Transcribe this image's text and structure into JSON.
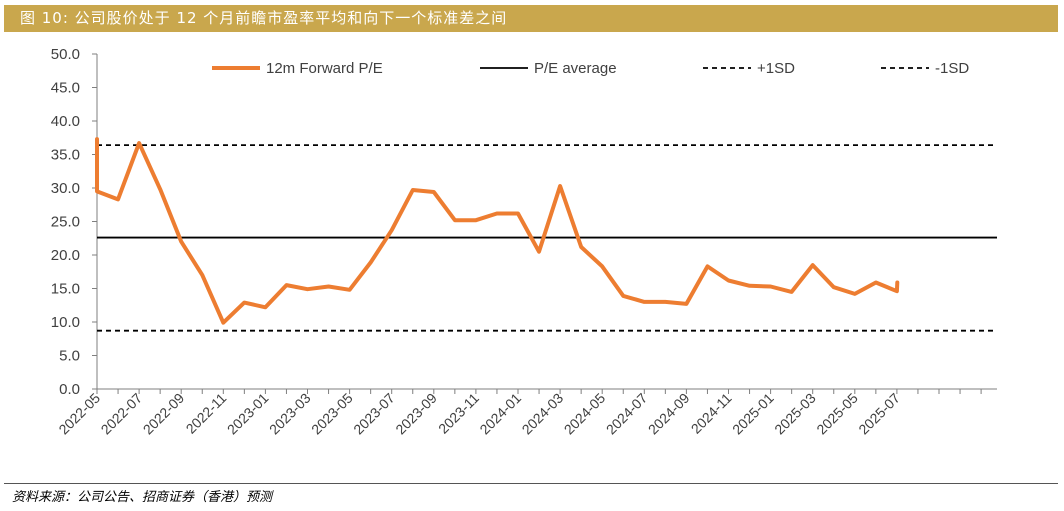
{
  "title": "图 10:  公司股价处于 12 个月前瞻市盈率平均和向下一个标准差之间",
  "source": "资料来源：公司公告、招商证券（香港）预测",
  "colors": {
    "title_bg": "#c9a74d",
    "series": "#ed7d31",
    "reference": "#000000"
  },
  "chart_data": {
    "type": "line",
    "ylim": [
      0,
      50
    ],
    "yticks": [
      "0.0",
      "5.0",
      "10.0",
      "15.0",
      "20.0",
      "25.0",
      "30.0",
      "35.0",
      "40.0",
      "45.0",
      "50.0"
    ],
    "x_tick_labels": [
      "2022-05",
      "2022-07",
      "2022-09",
      "2022-11",
      "2023-01",
      "2023-03",
      "2023-05",
      "2023-07",
      "2023-09",
      "2023-11",
      "2024-01",
      "2024-03",
      "2024-05",
      "2024-07",
      "2024-09",
      "2024-11",
      "2025-01",
      "2025-03",
      "2025-05",
      "2025-07"
    ],
    "legend_position": "top",
    "series": [
      {
        "name": "12m Forward P/E",
        "style": "solid",
        "color": "#ed7d31",
        "x": [
          "2022-05",
          "2022-05",
          "2022-06",
          "2022-07",
          "2022-08",
          "2022-09",
          "2022-10",
          "2022-11",
          "2022-12",
          "2023-01",
          "2023-02",
          "2023-03",
          "2023-04",
          "2023-05",
          "2023-06",
          "2023-07",
          "2023-08",
          "2023-09",
          "2023-10",
          "2023-11",
          "2023-12",
          "2024-01",
          "2024-02",
          "2024-03",
          "2024-04",
          "2024-05",
          "2024-06",
          "2024-07",
          "2024-08",
          "2024-09",
          "2024-10",
          "2024-11",
          "2024-12",
          "2025-01",
          "2025-02",
          "2025-03",
          "2025-04",
          "2025-05",
          "2025-06",
          "2025-07",
          "2025-07"
        ],
        "values": [
          37.3,
          29.5,
          28.3,
          36.7,
          29.8,
          22.0,
          17.0,
          9.9,
          12.9,
          12.2,
          15.5,
          14.9,
          15.3,
          14.8,
          18.9,
          23.7,
          29.7,
          29.4,
          25.2,
          25.2,
          26.2,
          26.2,
          20.5,
          30.3,
          21.2,
          18.3,
          13.9,
          13.0,
          13.0,
          12.7,
          18.3,
          16.2,
          15.4,
          15.3,
          14.5,
          18.5,
          15.2,
          14.2,
          15.9,
          14.6,
          15.9
        ]
      },
      {
        "name": "P/E average",
        "style": "solid",
        "color": "#000000",
        "value": 22.6
      },
      {
        "name": "+1SD",
        "style": "dashed",
        "color": "#000000",
        "value": 36.4
      },
      {
        "name": "-1SD",
        "style": "dashed",
        "color": "#000000",
        "value": 8.7
      }
    ]
  }
}
